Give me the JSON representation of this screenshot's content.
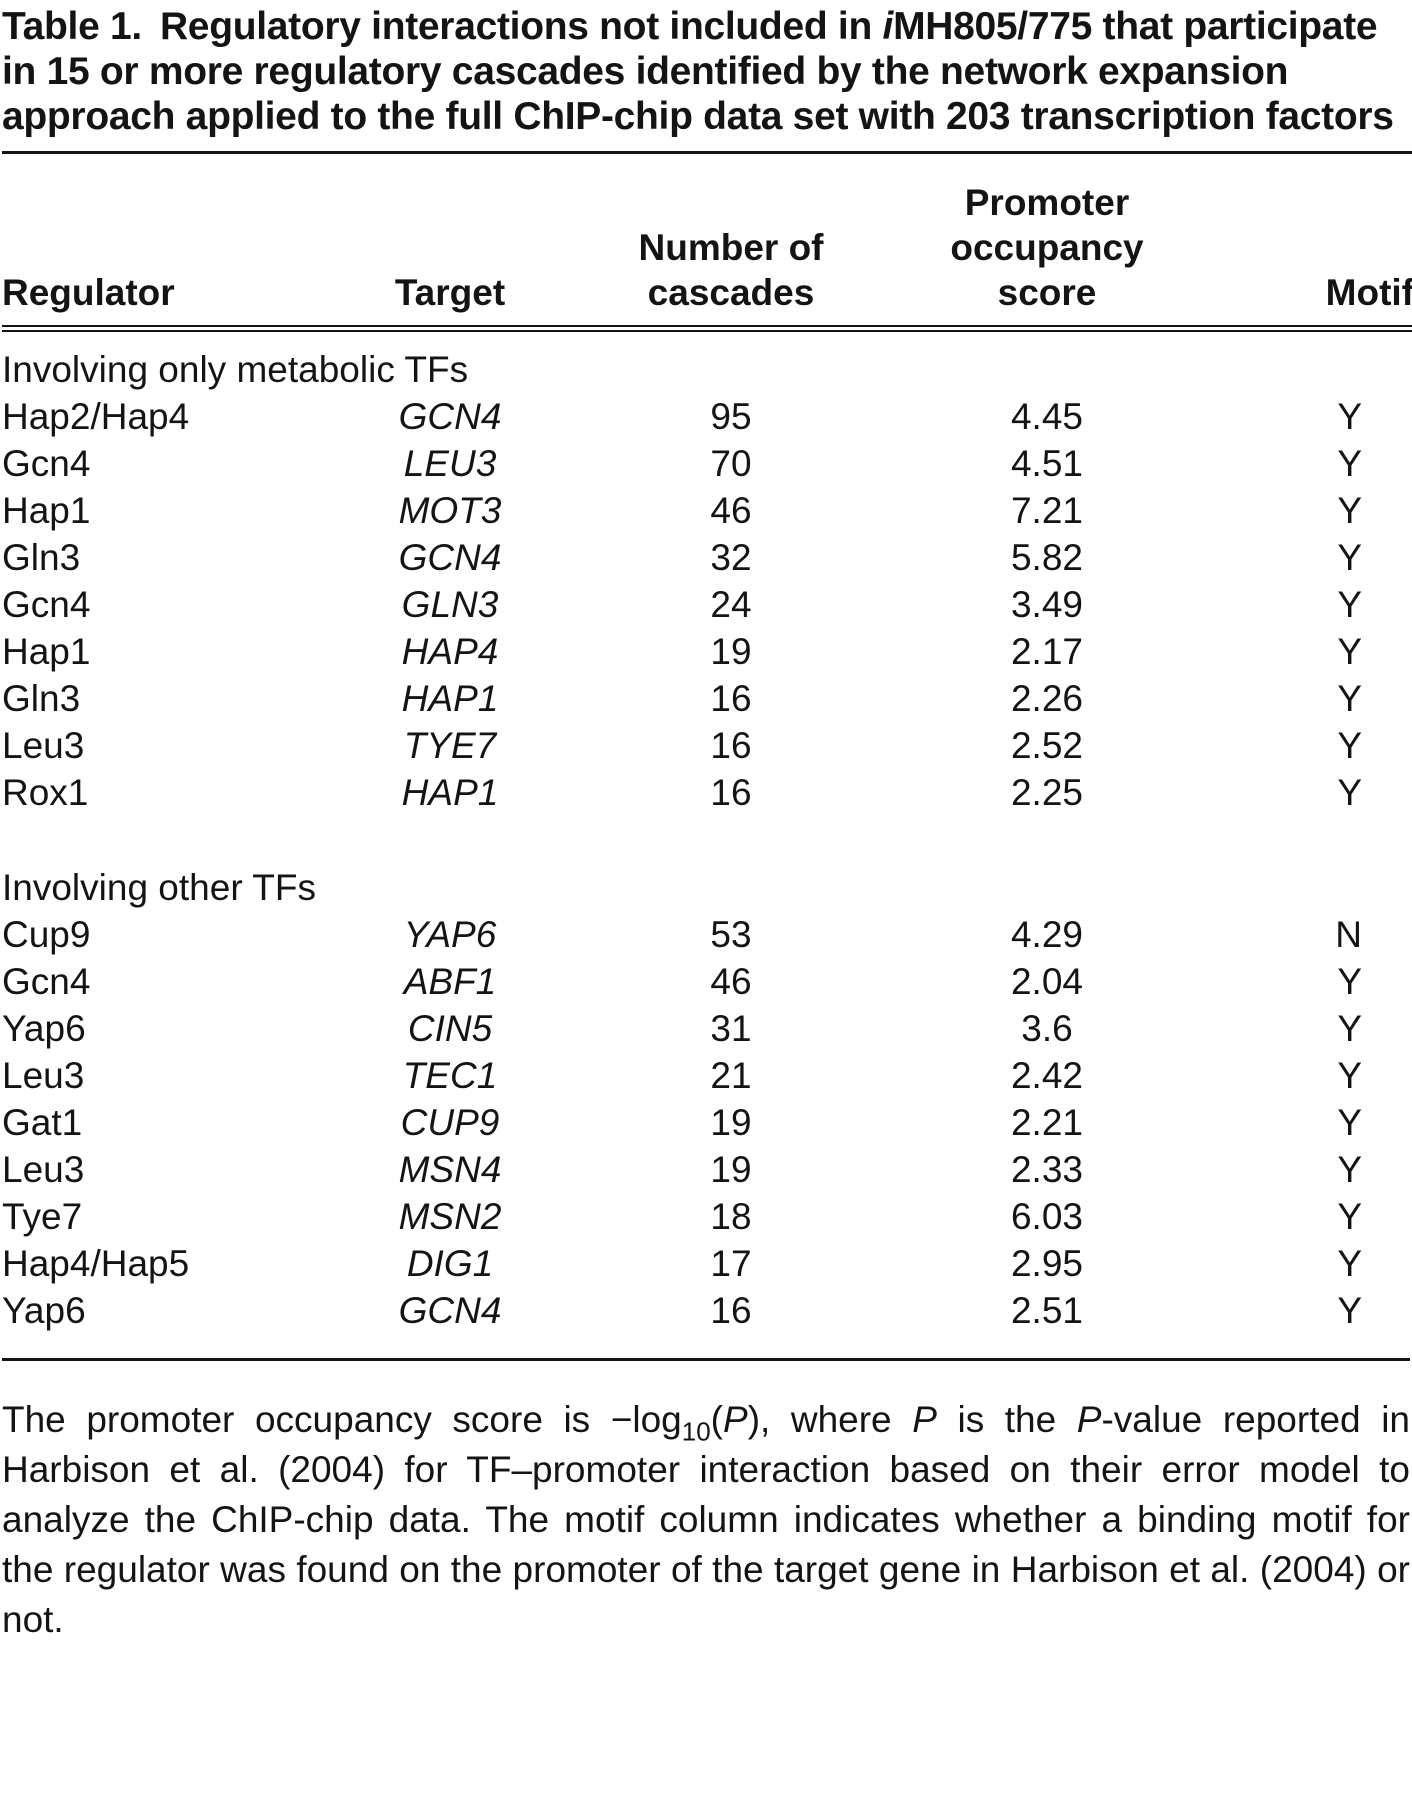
{
  "title": {
    "label": "Table 1.",
    "before_italic": "Regulatory interactions not included in ",
    "italic_i": "i",
    "after_italic": "MH805/775 that participate in 15 or more regulatory cascades identified by the network expansion approach applied to the full ChIP-chip data set with 203 transcription factors"
  },
  "table": {
    "headers": {
      "regulator": "Regulator",
      "target": "Target",
      "cascades": "Number of\ncascades",
      "score": "Promoter\noccupancy\nscore",
      "motif": "Motif"
    },
    "sections": [
      {
        "label": "Involving only metabolic TFs",
        "rows": [
          {
            "regulator": "Hap2/Hap4",
            "target": "GCN4",
            "cascades": "95",
            "score": "4.45",
            "motif": "Y"
          },
          {
            "regulator": "Gcn4",
            "target": "LEU3",
            "cascades": "70",
            "score": "4.51",
            "motif": "Y"
          },
          {
            "regulator": "Hap1",
            "target": "MOT3",
            "cascades": "46",
            "score": "7.21",
            "motif": "Y"
          },
          {
            "regulator": "Gln3",
            "target": "GCN4",
            "cascades": "32",
            "score": "5.82",
            "motif": "Y"
          },
          {
            "regulator": "Gcn4",
            "target": "GLN3",
            "cascades": "24",
            "score": "3.49",
            "motif": "Y"
          },
          {
            "regulator": "Hap1",
            "target": "HAP4",
            "cascades": "19",
            "score": "2.17",
            "motif": "Y"
          },
          {
            "regulator": "Gln3",
            "target": "HAP1",
            "cascades": "16",
            "score": "2.26",
            "motif": "Y"
          },
          {
            "regulator": "Leu3",
            "target": "TYE7",
            "cascades": "16",
            "score": "2.52",
            "motif": "Y"
          },
          {
            "regulator": "Rox1",
            "target": "HAP1",
            "cascades": "16",
            "score": "2.25",
            "motif": "Y"
          }
        ]
      },
      {
        "label": "Involving other TFs",
        "rows": [
          {
            "regulator": "Cup9",
            "target": "YAP6",
            "cascades": "53",
            "score": "4.29",
            "motif": "N"
          },
          {
            "regulator": "Gcn4",
            "target": "ABF1",
            "cascades": "46",
            "score": "2.04",
            "motif": "Y"
          },
          {
            "regulator": "Yap6",
            "target": "CIN5",
            "cascades": "31",
            "score": "3.6",
            "motif": "Y"
          },
          {
            "regulator": "Leu3",
            "target": "TEC1",
            "cascades": "21",
            "score": "2.42",
            "motif": "Y"
          },
          {
            "regulator": "Gat1",
            "target": "CUP9",
            "cascades": "19",
            "score": "2.21",
            "motif": "Y"
          },
          {
            "regulator": "Leu3",
            "target": "MSN4",
            "cascades": "19",
            "score": "2.33",
            "motif": "Y"
          },
          {
            "regulator": "Tye7",
            "target": "MSN2",
            "cascades": "18",
            "score": "6.03",
            "motif": "Y"
          },
          {
            "regulator": "Hap4/Hap5",
            "target": "DIG1",
            "cascades": "17",
            "score": "2.95",
            "motif": "Y"
          },
          {
            "regulator": "Yap6",
            "target": "GCN4",
            "cascades": "16",
            "score": "2.51",
            "motif": "Y"
          }
        ]
      }
    ]
  },
  "footnote": {
    "segments": [
      {
        "text": "The promoter occupancy score is −log"
      },
      {
        "text": "10",
        "style": "sub"
      },
      {
        "text": "("
      },
      {
        "text": "P",
        "style": "italic"
      },
      {
        "text": "), where "
      },
      {
        "text": "P",
        "style": "italic"
      },
      {
        "text": " is the "
      },
      {
        "text": "P",
        "style": "italic"
      },
      {
        "text": "-value reported in Harbison et al. (2004) for TF–promoter interaction based on their error model to analyze the ChIP-chip data. The motif column indicates whether a binding motif for the regulator was found on the promoter of the target gene in Harbison et al. (2004) or not."
      }
    ]
  }
}
